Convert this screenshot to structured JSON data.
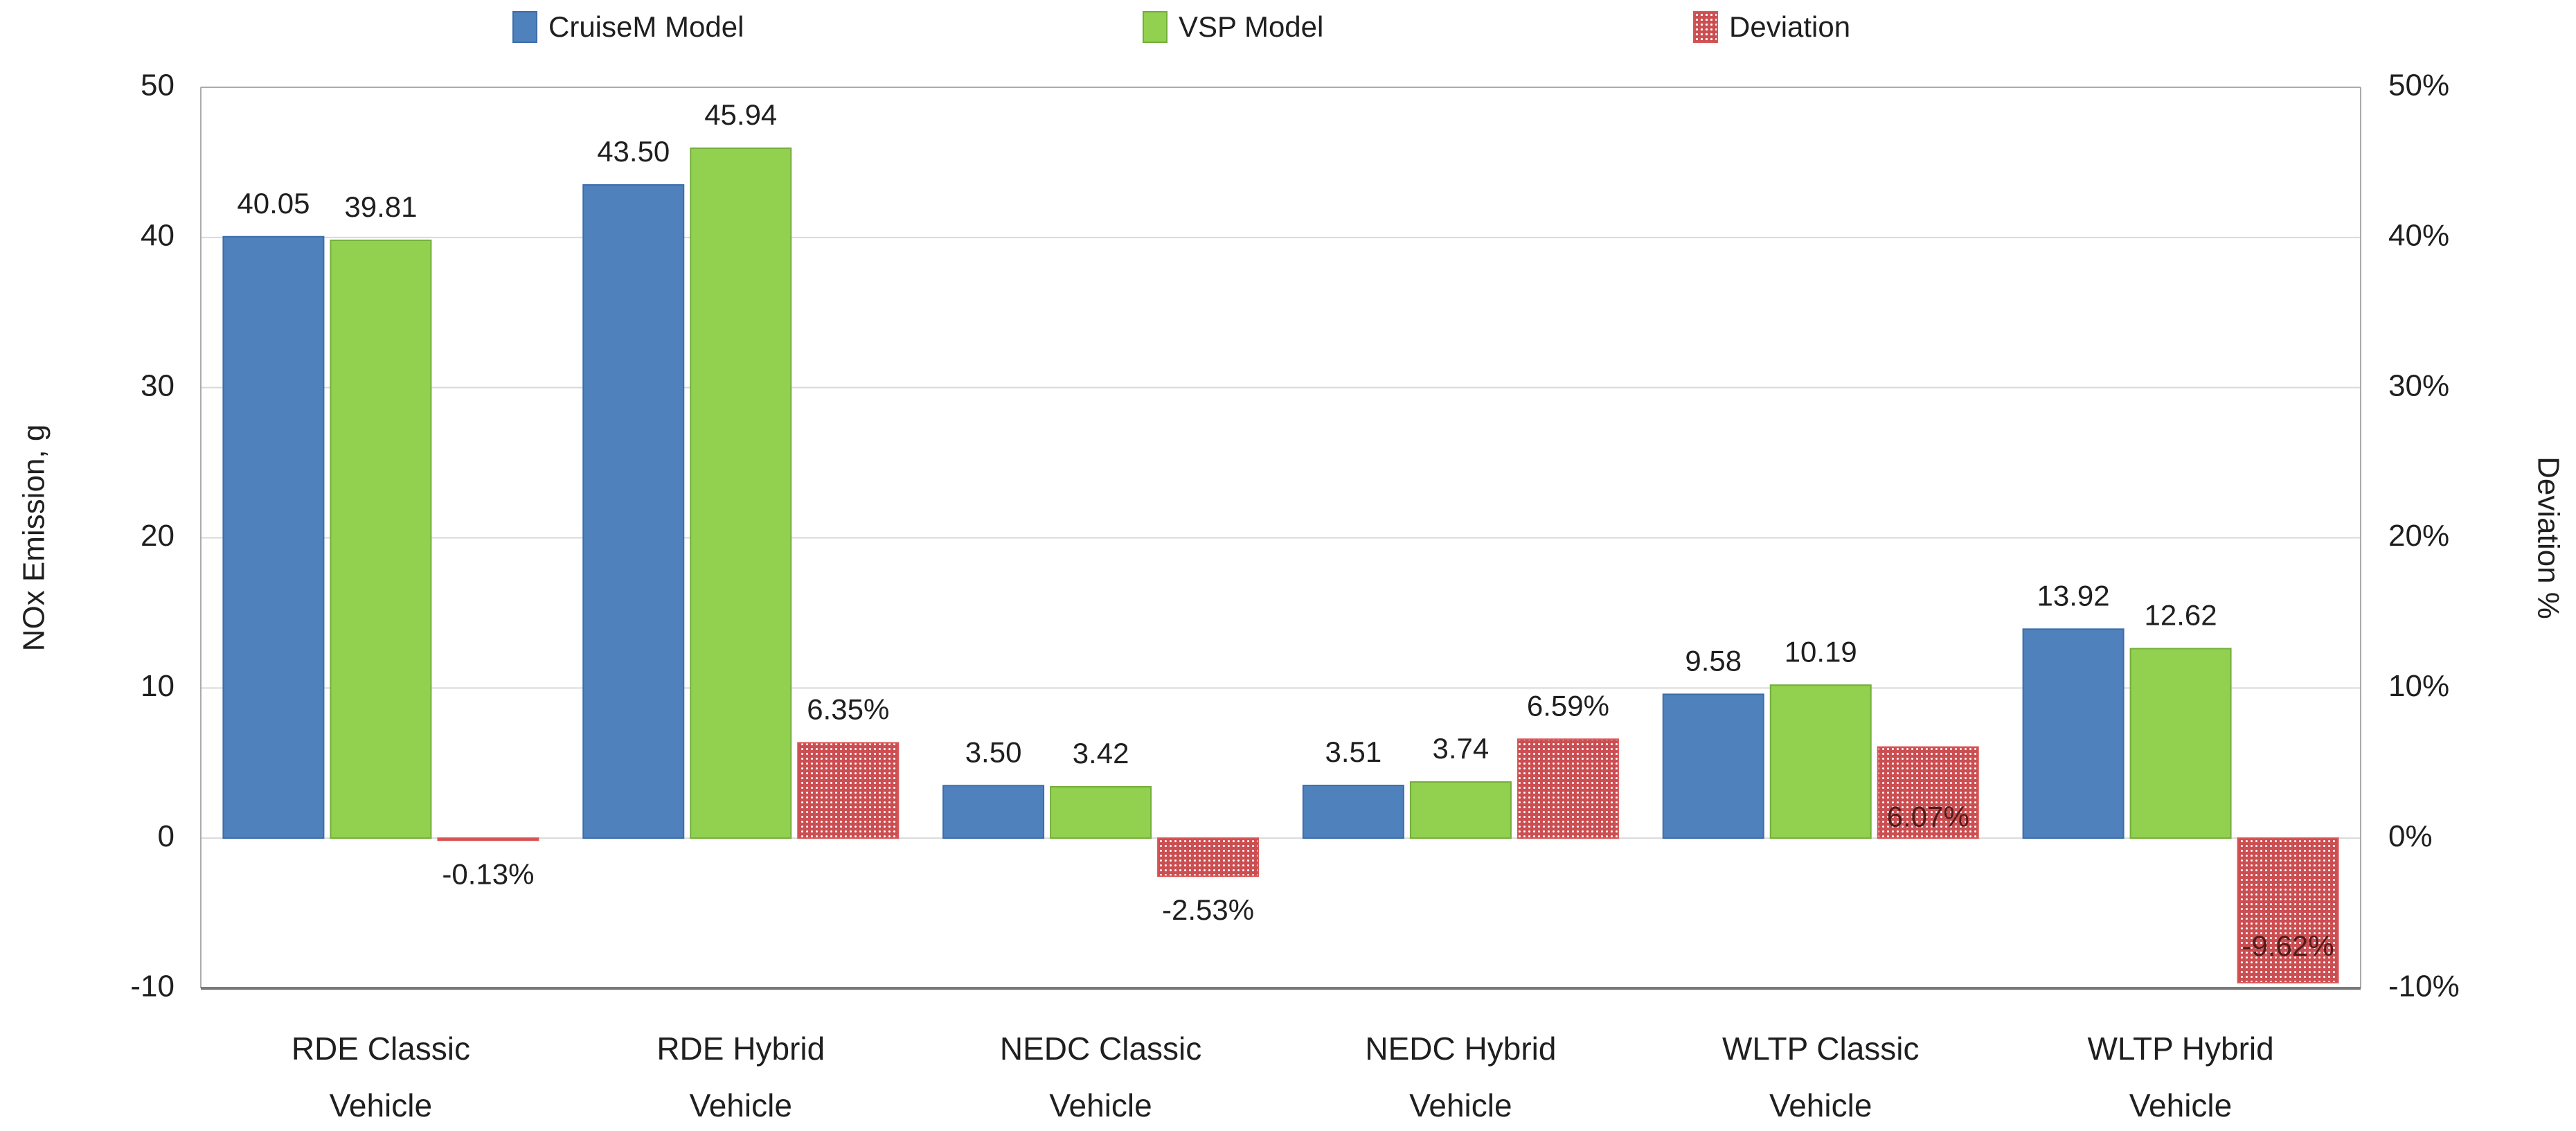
{
  "chart_data": {
    "type": "bar",
    "title": "",
    "categories": [
      "RDE Classic Vehicle",
      "RDE Hybrid Vehicle",
      "NEDC Classic Vehicle",
      "NEDC Hybrid Vehicle",
      "WLTP Classic Vehicle",
      "WLTP Hybrid Vehicle"
    ],
    "categories_wrapped": [
      [
        "RDE Classic",
        "Vehicle"
      ],
      [
        "RDE Hybrid",
        "Vehicle"
      ],
      [
        "NEDC Classic",
        "Vehicle"
      ],
      [
        "NEDC Hybrid",
        "Vehicle"
      ],
      [
        "WLTP Classic",
        "Vehicle"
      ],
      [
        "WLTP Hybrid",
        "Vehicle"
      ]
    ],
    "series": [
      {
        "name": "CruiseM Model",
        "axis": "left",
        "color": "#4F81BD",
        "border": "#3D6DA8",
        "values": [
          40.05,
          43.5,
          3.5,
          3.51,
          9.58,
          13.92
        ],
        "labels": [
          "40.05",
          "43.50",
          "3.50",
          "3.51",
          "9.58",
          "13.92"
        ]
      },
      {
        "name": "VSP Model",
        "axis": "left",
        "color": "#92D050",
        "border": "#75AD3B",
        "values": [
          39.81,
          45.94,
          3.42,
          3.74,
          10.19,
          12.62
        ],
        "labels": [
          "39.81",
          "45.94",
          "3.42",
          "3.74",
          "10.19",
          "12.62"
        ]
      },
      {
        "name": "Deviation",
        "axis": "right",
        "pattern": "dots",
        "color": "#CB4F52",
        "dot_color": "#FFFFFF",
        "border": "#DB5656",
        "inside_label_color": "#571A1A",
        "values": [
          -0.13,
          6.35,
          -2.53,
          6.59,
          6.07,
          -9.62
        ],
        "labels": [
          "-0.13%",
          "6.35%",
          "-2.53%",
          "6.59%",
          "6.07%",
          "-9.62%"
        ],
        "label_placements": [
          "below",
          "above",
          "below",
          "above",
          "inside-base",
          "inside-end"
        ]
      }
    ],
    "left_axis": {
      "title": "NOx Emission, g",
      "min": -10,
      "max": 50,
      "step": 10,
      "tick_labels": [
        "50",
        "40",
        "30",
        "20",
        "10",
        "0",
        "-10"
      ]
    },
    "right_axis": {
      "title": "Deviation %",
      "min": -10,
      "max": 50,
      "step": 10,
      "tick_labels": [
        "50%",
        "40%",
        "30%",
        "20%",
        "10%",
        "0%",
        "-10%"
      ]
    },
    "legend": {
      "position": "top",
      "items": [
        "CruiseM Model",
        "VSP Model",
        "Deviation"
      ]
    },
    "grid": true,
    "text_color": "#1F1F1F",
    "gridline_color": "#D9D9D9",
    "plot_border_color": "#ABABAB",
    "bottom_axis_color": "#7A7A7A"
  }
}
